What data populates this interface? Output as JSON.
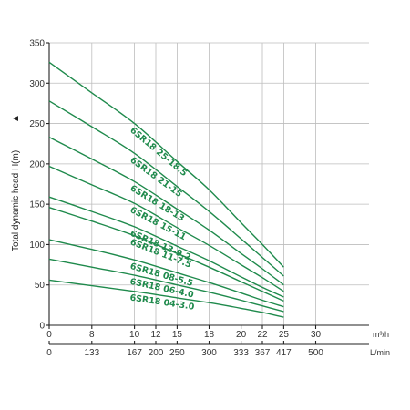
{
  "chart_data": {
    "type": "line",
    "title": "",
    "ylabel": "Total dynamic head H(m)",
    "ylabel_arrow": "▲",
    "x_unit_primary": "m³/h",
    "x_unit_secondary": "L/min",
    "xlim": [
      0,
      30
    ],
    "ylim": [
      0,
      350
    ],
    "grid": true,
    "x_ticks_m3h": [
      {
        "value": 0,
        "label": "0"
      },
      {
        "value": 4,
        "label": "8"
      },
      {
        "value": 8,
        "label": "10"
      },
      {
        "value": 10,
        "label": "12"
      },
      {
        "value": 12,
        "label": "15"
      },
      {
        "value": 15,
        "label": "18"
      },
      {
        "value": 18,
        "label": "20"
      },
      {
        "value": 20,
        "label": "22"
      },
      {
        "value": 22,
        "label": "25"
      },
      {
        "value": 25,
        "label": "30"
      }
    ],
    "x_ticks_lmin": [
      {
        "value": 0,
        "label": "0"
      },
      {
        "value": 4,
        "label": "133"
      },
      {
        "value": 8,
        "label": "167"
      },
      {
        "value": 10,
        "label": "200"
      },
      {
        "value": 12,
        "label": "250"
      },
      {
        "value": 15,
        "label": "300"
      },
      {
        "value": 18,
        "label": "333"
      },
      {
        "value": 20,
        "label": "367"
      },
      {
        "value": 22,
        "label": "417"
      },
      {
        "value": 25,
        "label": "500"
      }
    ],
    "y_ticks": [
      0,
      50,
      100,
      150,
      200,
      250,
      300,
      350
    ],
    "series": [
      {
        "name": "6SR18 25-18.5",
        "points": [
          [
            0,
            326
          ],
          [
            4,
            288
          ],
          [
            8,
            250
          ],
          [
            12,
            203
          ],
          [
            15,
            168
          ],
          [
            18,
            127
          ],
          [
            20,
            100
          ],
          [
            22,
            72
          ]
        ]
      },
      {
        "name": "6SR18 21-15",
        "points": [
          [
            0,
            278
          ],
          [
            4,
            246
          ],
          [
            8,
            213
          ],
          [
            12,
            172
          ],
          [
            15,
            141
          ],
          [
            18,
            107
          ],
          [
            20,
            84
          ],
          [
            22,
            61
          ]
        ]
      },
      {
        "name": "6SR18 18-13",
        "points": [
          [
            0,
            233
          ],
          [
            4,
            206
          ],
          [
            8,
            178
          ],
          [
            12,
            144
          ],
          [
            15,
            118
          ],
          [
            18,
            89
          ],
          [
            20,
            70
          ],
          [
            22,
            50
          ]
        ]
      },
      {
        "name": "6SR18 15-11",
        "points": [
          [
            0,
            197
          ],
          [
            4,
            174
          ],
          [
            8,
            151
          ],
          [
            12,
            121
          ],
          [
            15,
            99
          ],
          [
            18,
            75
          ],
          [
            20,
            59
          ],
          [
            22,
            42
          ]
        ]
      },
      {
        "name": "6SR18 13-9.2",
        "points": [
          [
            0,
            159
          ],
          [
            4,
            141
          ],
          [
            8,
            122
          ],
          [
            12,
            98
          ],
          [
            15,
            80
          ],
          [
            18,
            60
          ],
          [
            20,
            47
          ],
          [
            22,
            35
          ]
        ]
      },
      {
        "name": "6SR18 11-7.5",
        "points": [
          [
            0,
            146
          ],
          [
            4,
            129
          ],
          [
            8,
            111
          ],
          [
            12,
            89
          ],
          [
            15,
            72
          ],
          [
            18,
            54
          ],
          [
            20,
            42
          ],
          [
            22,
            30
          ]
        ]
      },
      {
        "name": "6SR18 08-5.5",
        "points": [
          [
            0,
            106
          ],
          [
            4,
            94
          ],
          [
            8,
            81
          ],
          [
            12,
            65
          ],
          [
            15,
            53
          ],
          [
            18,
            40
          ],
          [
            20,
            31
          ],
          [
            22,
            23
          ]
        ]
      },
      {
        "name": "6SR18 06-4.0",
        "points": [
          [
            0,
            82
          ],
          [
            4,
            72
          ],
          [
            8,
            62
          ],
          [
            12,
            50
          ],
          [
            15,
            41
          ],
          [
            18,
            31
          ],
          [
            20,
            24
          ],
          [
            22,
            17
          ]
        ]
      },
      {
        "name": "6SR18 04-3.0",
        "points": [
          [
            0,
            56
          ],
          [
            4,
            49
          ],
          [
            8,
            42
          ],
          [
            12,
            34
          ],
          [
            15,
            28
          ],
          [
            18,
            21
          ],
          [
            20,
            16
          ],
          [
            22,
            10
          ]
        ]
      }
    ]
  },
  "colors": {
    "curve": "#1f8a4c",
    "grid": "#bdbdbd",
    "axis": "#222222"
  }
}
